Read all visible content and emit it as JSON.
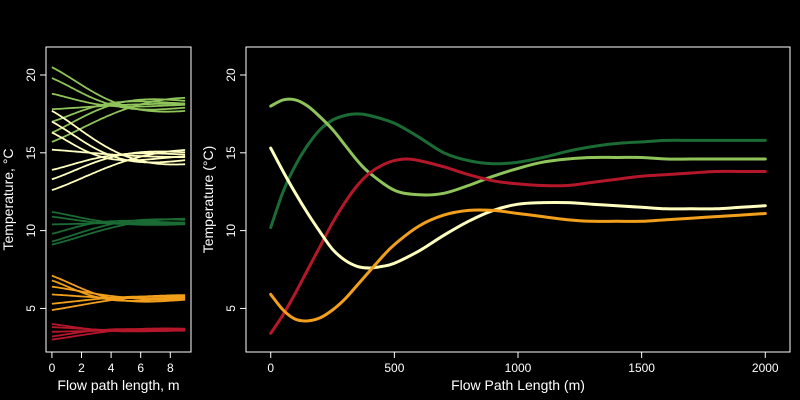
{
  "colors": {
    "background": "#000000",
    "foreground": "#ffffff",
    "dark_green": "#1a6b34",
    "light_green": "#8fc45a",
    "pale_yellow": "#ffffc0",
    "orange": "#f2a01c",
    "red": "#b5172a"
  },
  "chart_data": [
    {
      "type": "line",
      "xlabel": "Flow path length, m",
      "ylabel": "Temperature, °C",
      "xlim": [
        -0.4,
        9.4
      ],
      "ylim": [
        2.2,
        21.8
      ],
      "xticks": [
        0,
        2,
        4,
        6,
        8
      ],
      "xtick_labels": [
        "0",
        "2",
        "4",
        "6",
        "8"
      ],
      "yticks": [
        5,
        10,
        15,
        20
      ],
      "ytick_labels": [
        "5",
        "10",
        "15",
        "20"
      ],
      "grid": false,
      "groups": [
        {
          "color": "light_green",
          "center": 18.1,
          "starts": [
            20.5,
            19.8,
            18.8,
            17.8,
            17.0,
            16.3,
            15.7
          ],
          "lengths": [
            5.6,
            4.8,
            3.9,
            6.5,
            4.2,
            5.0,
            7.2
          ]
        },
        {
          "color": "pale_yellow",
          "center": 14.8,
          "starts": [
            17.7,
            17.0,
            16.3,
            15.2,
            13.9,
            13.3,
            12.6
          ],
          "lengths": [
            6.0,
            4.9,
            3.8,
            6.9,
            4.6,
            5.3,
            7.5
          ]
        },
        {
          "color": "dark_green",
          "center": 10.5,
          "starts": [
            11.2,
            10.9,
            10.4,
            9.8,
            9.3,
            9.1
          ],
          "lengths": [
            5.0,
            4.0,
            6.0,
            3.6,
            5.4,
            6.8
          ]
        },
        {
          "color": "orange",
          "center": 5.7,
          "starts": [
            7.1,
            6.8,
            6.4,
            5.9,
            5.3,
            4.9
          ],
          "lengths": [
            4.6,
            3.8,
            6.0,
            4.2,
            5.2,
            6.6
          ]
        },
        {
          "color": "red",
          "center": 3.6,
          "starts": [
            4.0,
            3.8,
            3.5,
            3.2,
            3.0
          ],
          "lengths": [
            4.0,
            5.0,
            6.2,
            3.8,
            5.6
          ]
        }
      ]
    },
    {
      "type": "line",
      "xlabel": "Flow Path Length (m)",
      "ylabel": "Temperature (°C)",
      "xlim": [
        -100,
        2100
      ],
      "ylim": [
        2.2,
        21.8
      ],
      "xticks": [
        0,
        500,
        1000,
        1500,
        2000
      ],
      "xtick_labels": [
        "0",
        "500",
        "1000",
        "1500",
        "2000"
      ],
      "yticks": [
        5,
        10,
        15,
        20
      ],
      "ytick_labels": [
        "5",
        "10",
        "15",
        "20"
      ],
      "grid": false,
      "series": [
        {
          "color": "dark_green",
          "x": [
            0,
            50,
            100,
            150,
            200,
            250,
            300,
            350,
            400,
            500,
            600,
            700,
            800,
            900,
            1000,
            1100,
            1200,
            1300,
            1400,
            1500,
            1600,
            1700,
            1800,
            1900,
            2000
          ],
          "y": [
            10.2,
            12.5,
            14.2,
            15.5,
            16.5,
            17.1,
            17.4,
            17.5,
            17.4,
            16.9,
            16.0,
            15.0,
            14.5,
            14.3,
            14.4,
            14.7,
            15.1,
            15.4,
            15.6,
            15.7,
            15.8,
            15.8,
            15.8,
            15.8,
            15.8
          ]
        },
        {
          "color": "light_green",
          "x": [
            0,
            50,
            100,
            150,
            200,
            250,
            300,
            350,
            400,
            500,
            600,
            700,
            800,
            900,
            1000,
            1100,
            1200,
            1300,
            1400,
            1500,
            1600,
            1700,
            1800,
            1900,
            2000
          ],
          "y": [
            18.0,
            18.4,
            18.4,
            18.0,
            17.3,
            16.5,
            15.5,
            14.5,
            13.7,
            12.6,
            12.3,
            12.4,
            12.9,
            13.5,
            14.0,
            14.4,
            14.6,
            14.7,
            14.7,
            14.7,
            14.6,
            14.6,
            14.6,
            14.6,
            14.6
          ]
        },
        {
          "color": "red",
          "x": [
            0,
            50,
            100,
            150,
            200,
            250,
            300,
            350,
            400,
            450,
            500,
            550,
            600,
            700,
            800,
            900,
            1000,
            1100,
            1200,
            1300,
            1400,
            1500,
            1600,
            1700,
            1800,
            1900,
            2000
          ],
          "y": [
            3.4,
            4.6,
            6.0,
            7.5,
            9.0,
            10.5,
            11.8,
            12.9,
            13.7,
            14.2,
            14.5,
            14.6,
            14.5,
            14.1,
            13.6,
            13.2,
            13.0,
            12.9,
            12.9,
            13.1,
            13.3,
            13.5,
            13.6,
            13.7,
            13.8,
            13.8,
            13.8
          ]
        },
        {
          "color": "pale_yellow",
          "x": [
            0,
            50,
            100,
            150,
            200,
            250,
            300,
            350,
            400,
            450,
            500,
            600,
            700,
            800,
            900,
            1000,
            1100,
            1200,
            1300,
            1400,
            1500,
            1600,
            1700,
            1800,
            1900,
            2000
          ],
          "y": [
            15.3,
            13.8,
            12.4,
            11.1,
            9.9,
            8.8,
            8.1,
            7.7,
            7.6,
            7.7,
            7.9,
            8.7,
            9.7,
            10.6,
            11.3,
            11.7,
            11.8,
            11.8,
            11.7,
            11.6,
            11.5,
            11.4,
            11.4,
            11.4,
            11.5,
            11.6
          ]
        },
        {
          "color": "orange",
          "x": [
            0,
            50,
            100,
            150,
            200,
            250,
            300,
            350,
            400,
            450,
            500,
            600,
            700,
            800,
            900,
            1000,
            1100,
            1200,
            1300,
            1400,
            1500,
            1600,
            1700,
            1800,
            1900,
            2000
          ],
          "y": [
            5.9,
            4.9,
            4.3,
            4.2,
            4.4,
            4.9,
            5.6,
            6.5,
            7.4,
            8.3,
            9.1,
            10.3,
            11.0,
            11.3,
            11.3,
            11.1,
            10.9,
            10.7,
            10.6,
            10.6,
            10.6,
            10.7,
            10.8,
            10.9,
            11.0,
            11.1
          ]
        }
      ]
    }
  ]
}
